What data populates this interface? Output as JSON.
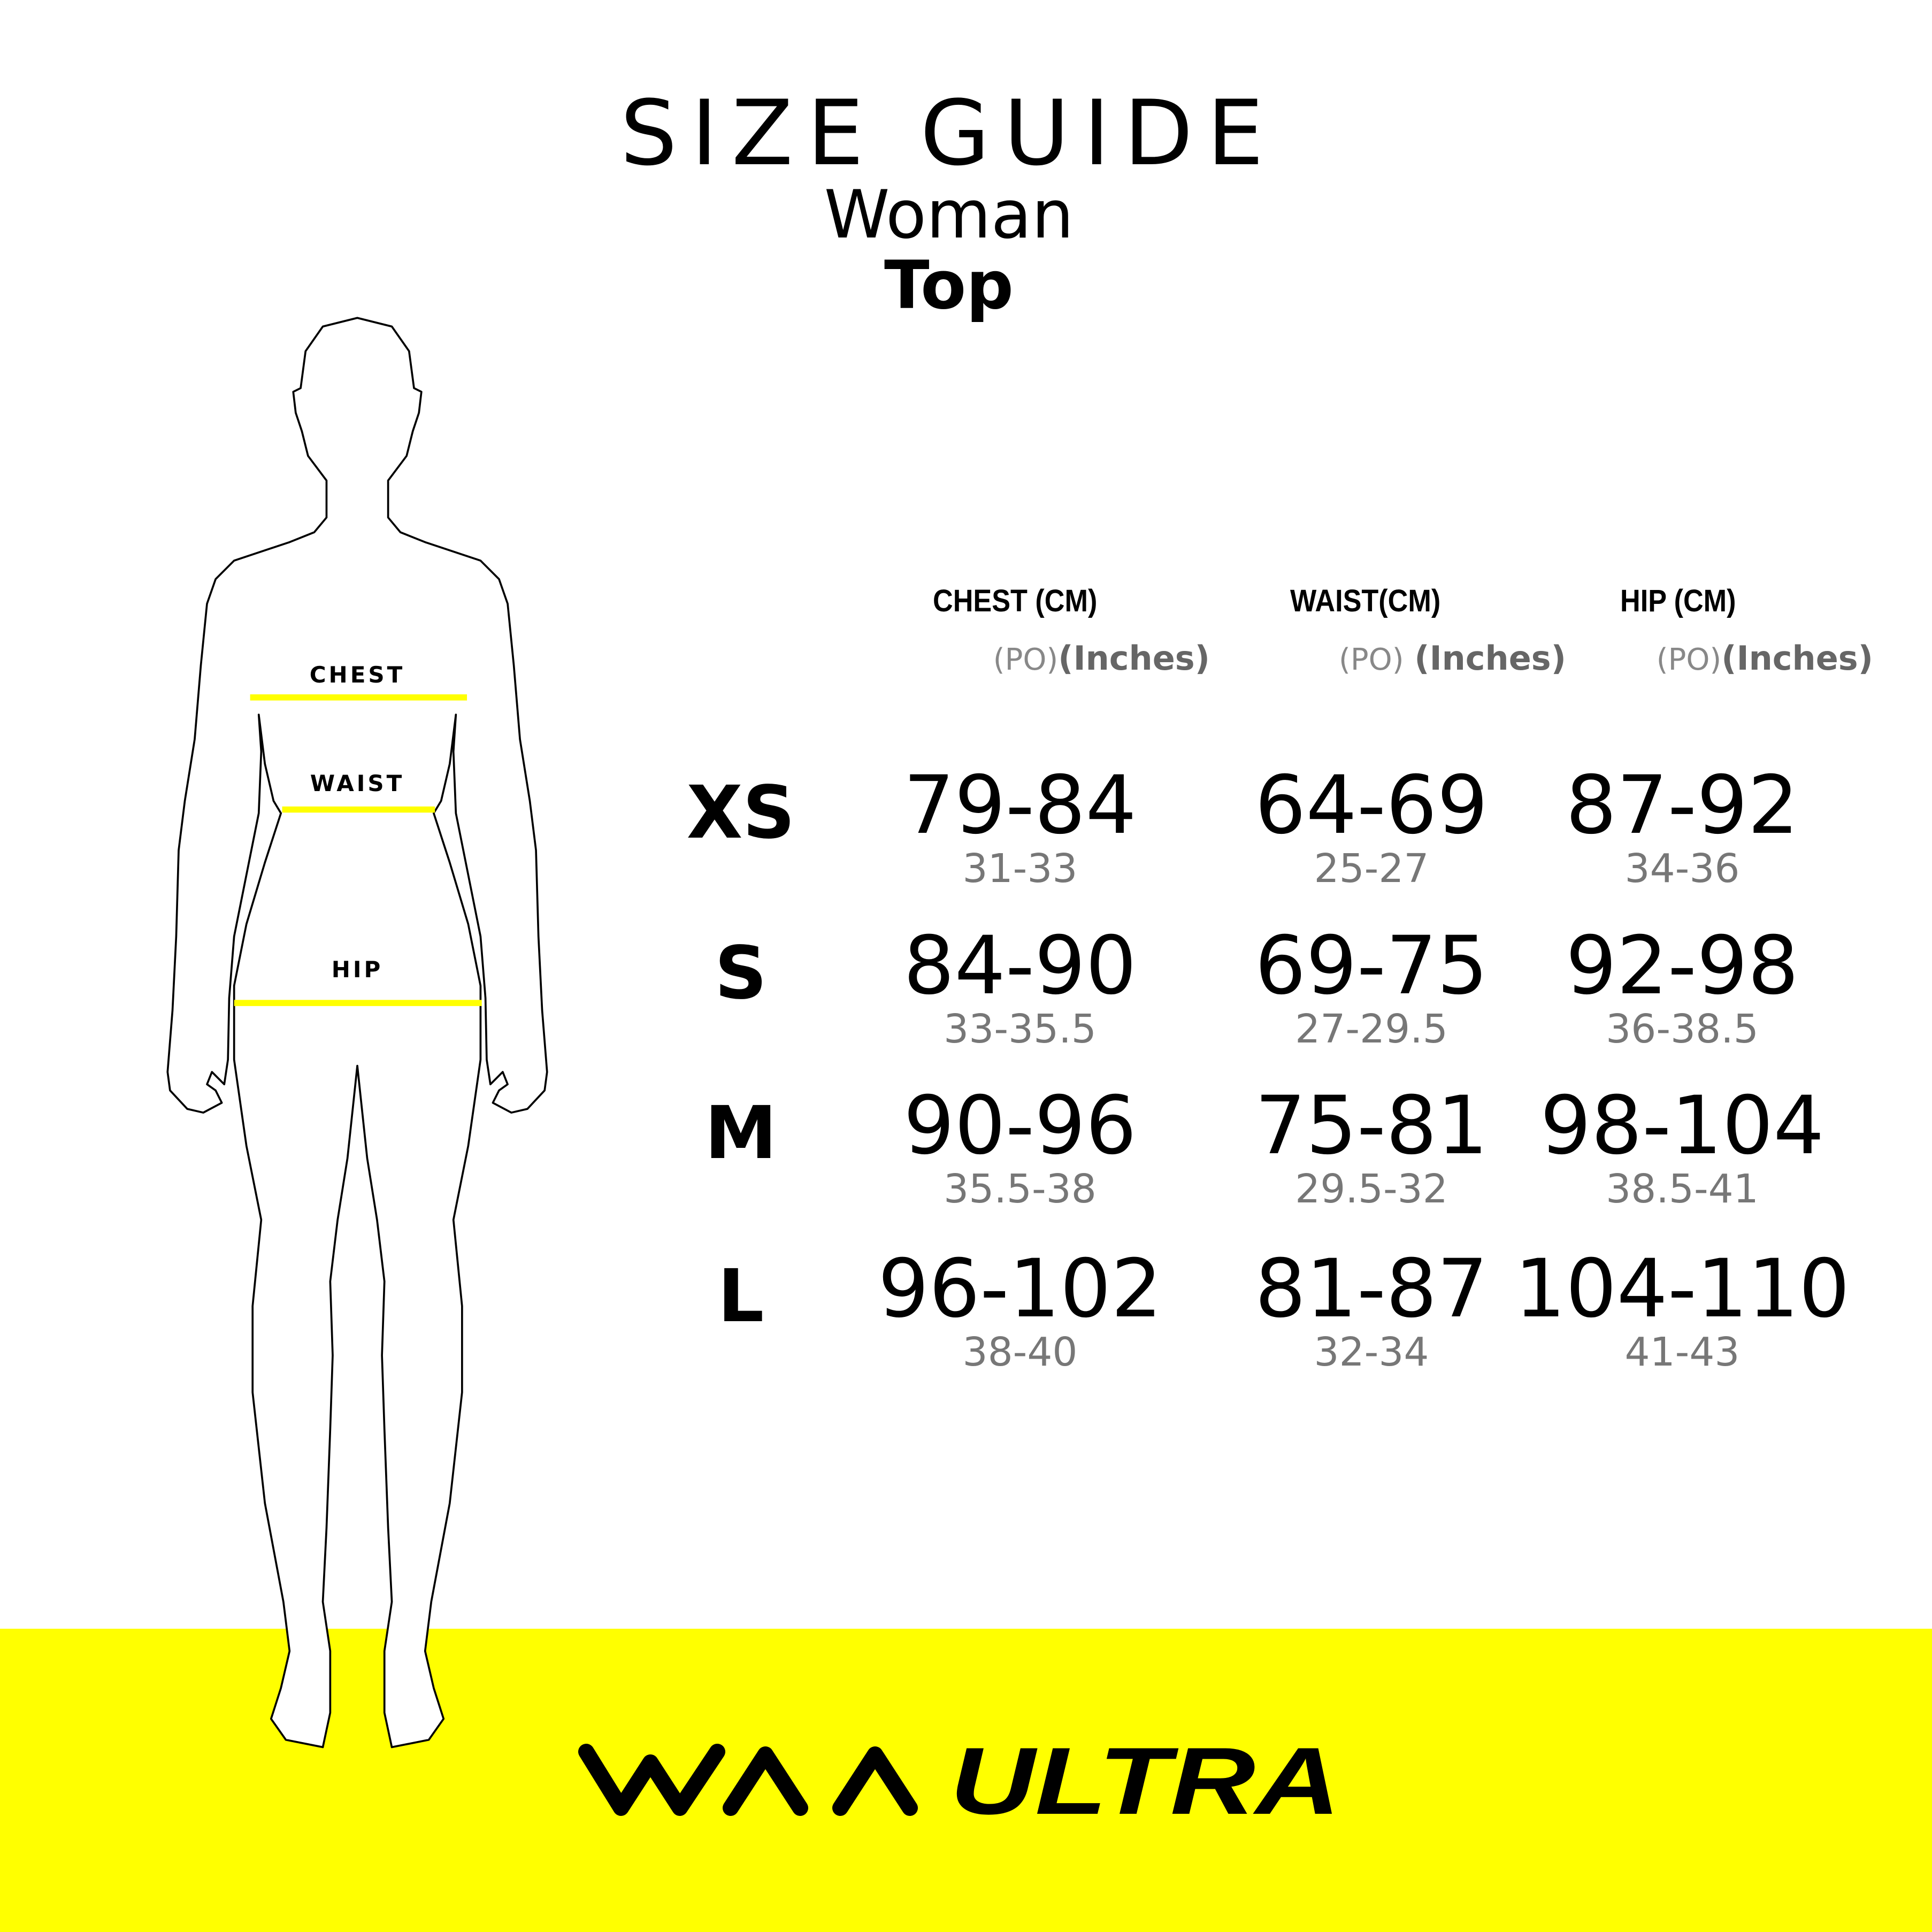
{
  "header": {
    "title": "SIZE GUIDE",
    "subtitle": "Woman",
    "product": "Top"
  },
  "columns": [
    {
      "label": "CHEST  (CM)",
      "unit_po": "(PO)",
      "unit_inches": "(Inches)"
    },
    {
      "label": "WAIST(CM)",
      "unit_po": "(PO)",
      "unit_inches": "(Inches)"
    },
    {
      "label": "HIP (CM)",
      "unit_po": "(PO)",
      "unit_inches": "(Inches)"
    }
  ],
  "rows": [
    {
      "size": "XS",
      "cm": [
        "79-84",
        "64-69",
        "87-92"
      ],
      "inches": [
        "31-33",
        "25-27",
        "34-36"
      ]
    },
    {
      "size": "S",
      "cm": [
        "84-90",
        "69-75",
        "92-98"
      ],
      "inches": [
        "33-35.5",
        "27-29.5",
        "36-38.5"
      ]
    },
    {
      "size": "M",
      "cm": [
        "90-96",
        "75-81",
        "98-104"
      ],
      "inches": [
        "35.5-38",
        "29.5-32",
        "38.5-41"
      ]
    },
    {
      "size": "L",
      "cm": [
        "96-102",
        "81-87",
        "104-110"
      ],
      "inches": [
        "38-40",
        "32-34",
        "41-43"
      ]
    }
  ],
  "figure": {
    "chest_label": "CHEST",
    "waist_label": "WAIST",
    "hip_label": "HIP"
  },
  "brand": {
    "logo_text": "WAA ULTRA"
  },
  "colors": {
    "accent": "#ffff00",
    "text": "#000000",
    "secondary_text": "#777777"
  }
}
